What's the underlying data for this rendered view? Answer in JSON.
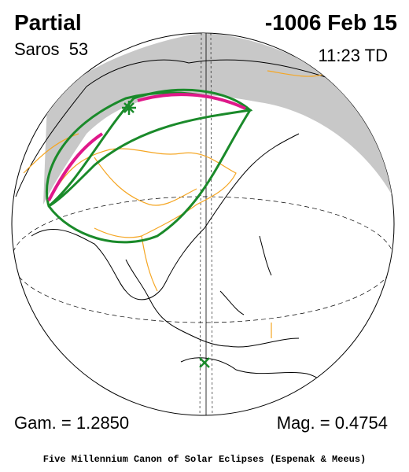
{
  "header": {
    "type": "Partial",
    "date": "-1006 Feb 15",
    "saros": "Saros  53",
    "time": "11:23 TD"
  },
  "footer": {
    "gamma": "Gam. = 1.2850",
    "magnitude": "Mag. = 0.4754",
    "credit": "Five Millennium Canon of Solar Eclipses (Espenak & Meeus)"
  }
}
